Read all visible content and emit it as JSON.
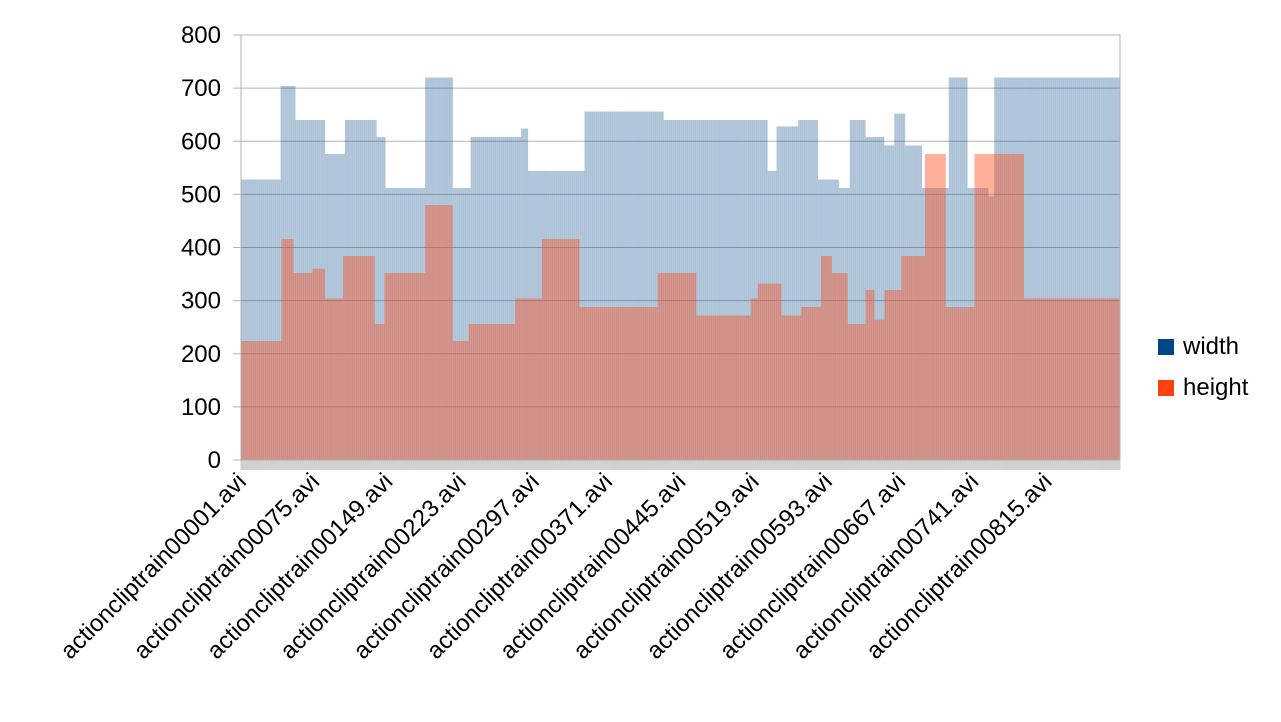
{
  "chart_data": {
    "type": "bar",
    "title": "",
    "xlabel": "",
    "ylabel": "",
    "ylim": [
      0,
      800
    ],
    "yticks": [
      "0",
      "100",
      "200",
      "300",
      "400",
      "500",
      "600",
      "700",
      "800"
    ],
    "grid": true,
    "legend_position": "right",
    "category_count": 888,
    "tick_labels": [
      "actioncliptrain00001.avi",
      "actioncliptrain00075.avi",
      "actioncliptrain00149.avi",
      "actioncliptrain00223.avi",
      "actioncliptrain00297.avi",
      "actioncliptrain00371.avi",
      "actioncliptrain00445.avi",
      "actioncliptrain00519.avi",
      "actioncliptrain00593.avi",
      "actioncliptrain00667.avi",
      "actioncliptrain00741.avi",
      "actioncliptrain00815.avi"
    ],
    "tick_label_positions": [
      1,
      75,
      149,
      223,
      297,
      371,
      445,
      519,
      593,
      667,
      741,
      815
    ],
    "series": [
      {
        "name": "width",
        "color": "#004586",
        "segments": [
          {
            "start": 1,
            "end": 40,
            "value": 528
          },
          {
            "start": 41,
            "end": 55,
            "value": 704
          },
          {
            "start": 56,
            "end": 85,
            "value": 640
          },
          {
            "start": 86,
            "end": 105,
            "value": 576
          },
          {
            "start": 106,
            "end": 137,
            "value": 640
          },
          {
            "start": 138,
            "end": 146,
            "value": 608
          },
          {
            "start": 147,
            "end": 186,
            "value": 512
          },
          {
            "start": 187,
            "end": 214,
            "value": 720
          },
          {
            "start": 215,
            "end": 232,
            "value": 512
          },
          {
            "start": 233,
            "end": 283,
            "value": 608
          },
          {
            "start": 284,
            "end": 290,
            "value": 624
          },
          {
            "start": 291,
            "end": 347,
            "value": 544
          },
          {
            "start": 348,
            "end": 427,
            "value": 656
          },
          {
            "start": 428,
            "end": 532,
            "value": 640
          },
          {
            "start": 533,
            "end": 541,
            "value": 544
          },
          {
            "start": 542,
            "end": 563,
            "value": 628
          },
          {
            "start": 564,
            "end": 583,
            "value": 640
          },
          {
            "start": 584,
            "end": 604,
            "value": 528
          },
          {
            "start": 605,
            "end": 615,
            "value": 512
          },
          {
            "start": 616,
            "end": 631,
            "value": 640
          },
          {
            "start": 632,
            "end": 650,
            "value": 608
          },
          {
            "start": 651,
            "end": 660,
            "value": 592
          },
          {
            "start": 661,
            "end": 671,
            "value": 652
          },
          {
            "start": 672,
            "end": 688,
            "value": 592
          },
          {
            "start": 689,
            "end": 715,
            "value": 512
          },
          {
            "start": 716,
            "end": 734,
            "value": 720
          },
          {
            "start": 735,
            "end": 755,
            "value": 512
          },
          {
            "start": 756,
            "end": 761,
            "value": 496
          },
          {
            "start": 762,
            "end": 888,
            "value": 720
          }
        ]
      },
      {
        "name": "height",
        "color": "#ff420e",
        "segments": [
          {
            "start": 1,
            "end": 41,
            "value": 224
          },
          {
            "start": 42,
            "end": 53,
            "value": 416
          },
          {
            "start": 54,
            "end": 72,
            "value": 352
          },
          {
            "start": 73,
            "end": 85,
            "value": 360
          },
          {
            "start": 86,
            "end": 103,
            "value": 304
          },
          {
            "start": 104,
            "end": 135,
            "value": 384
          },
          {
            "start": 136,
            "end": 145,
            "value": 256
          },
          {
            "start": 146,
            "end": 186,
            "value": 352
          },
          {
            "start": 187,
            "end": 214,
            "value": 480
          },
          {
            "start": 215,
            "end": 230,
            "value": 224
          },
          {
            "start": 231,
            "end": 277,
            "value": 256
          },
          {
            "start": 278,
            "end": 304,
            "value": 304
          },
          {
            "start": 305,
            "end": 342,
            "value": 416
          },
          {
            "start": 343,
            "end": 421,
            "value": 288
          },
          {
            "start": 422,
            "end": 460,
            "value": 352
          },
          {
            "start": 461,
            "end": 515,
            "value": 272
          },
          {
            "start": 516,
            "end": 522,
            "value": 304
          },
          {
            "start": 523,
            "end": 546,
            "value": 332
          },
          {
            "start": 547,
            "end": 566,
            "value": 272
          },
          {
            "start": 567,
            "end": 586,
            "value": 288
          },
          {
            "start": 587,
            "end": 597,
            "value": 384
          },
          {
            "start": 598,
            "end": 613,
            "value": 352
          },
          {
            "start": 614,
            "end": 631,
            "value": 256
          },
          {
            "start": 632,
            "end": 640,
            "value": 320
          },
          {
            "start": 641,
            "end": 650,
            "value": 264
          },
          {
            "start": 651,
            "end": 667,
            "value": 320
          },
          {
            "start": 668,
            "end": 691,
            "value": 384
          },
          {
            "start": 692,
            "end": 712,
            "value": 576
          },
          {
            "start": 713,
            "end": 741,
            "value": 288
          },
          {
            "start": 742,
            "end": 791,
            "value": 576
          },
          {
            "start": 792,
            "end": 888,
            "value": 304
          }
        ]
      }
    ]
  }
}
